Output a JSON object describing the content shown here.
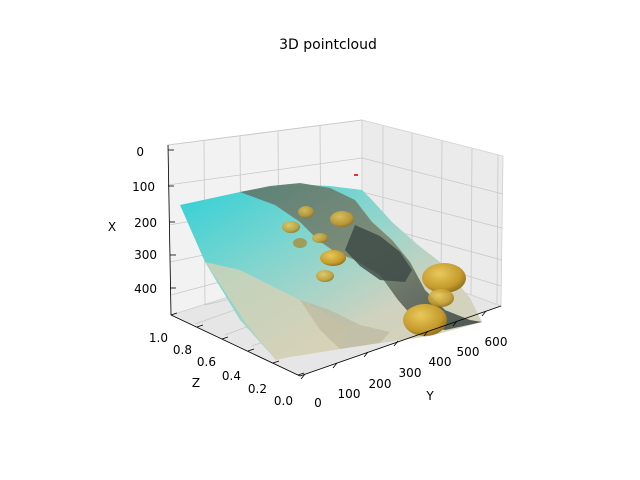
{
  "chart_data": {
    "type": "scatter",
    "projection": "3d",
    "title": "3D pointcloud",
    "axes": {
      "x": {
        "label": "X",
        "ticks": [
          "0",
          "100",
          "200",
          "300",
          "400"
        ],
        "inverted": true
      },
      "y": {
        "label": "Y",
        "ticks": [
          "0",
          "100",
          "200",
          "300",
          "400",
          "500",
          "600"
        ]
      },
      "z": {
        "label": "Z",
        "ticks": [
          "0.0",
          "0.2",
          "0.4",
          "0.6",
          "0.8",
          "1.0"
        ]
      }
    },
    "grid": true,
    "points_description_colors": {
      "water_teal": "#3fc9cf",
      "sand": "#c9c3a8",
      "rock_dark": "#4a5a55",
      "coral_yellow": "#c8a83a",
      "marker_red": "#e8352a"
    }
  }
}
